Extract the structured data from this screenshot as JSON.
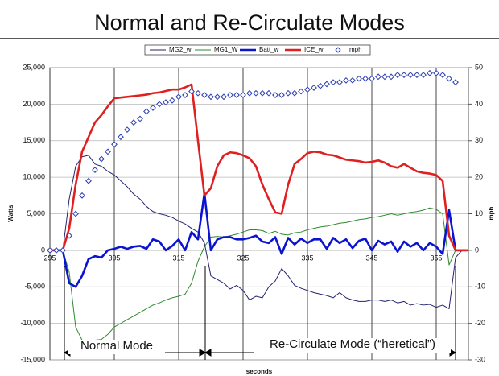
{
  "chart_data": {
    "type": "line",
    "title": "Normal and Re-Circulate Modes",
    "xlabel": "seconds",
    "ylabel": "Watts",
    "y2label": "mph",
    "annotations": [
      "Normal Mode",
      "Re-Circulate Mode (“heretical”)"
    ],
    "x": [
      295,
      296,
      297,
      298,
      299,
      300,
      301,
      302,
      303,
      304,
      305,
      306,
      307,
      308,
      309,
      310,
      311,
      312,
      313,
      314,
      315,
      316,
      317,
      318,
      319,
      320,
      321,
      322,
      323,
      324,
      325,
      326,
      327,
      328,
      329,
      330,
      331,
      332,
      333,
      334,
      335,
      336,
      337,
      338,
      339,
      340,
      341,
      342,
      343,
      344,
      345,
      346,
      347,
      348,
      349,
      350,
      351,
      352,
      353,
      354,
      355,
      356,
      357,
      358,
      359,
      360
    ],
    "xlim": [
      295,
      360
    ],
    "xticks": [
      295,
      305,
      315,
      325,
      335,
      345,
      355
    ],
    "ylim": [
      -15000,
      25000
    ],
    "yticks": [
      {
        "value": -15000,
        "label": "-15,000"
      },
      {
        "value": -10000,
        "label": "-10,000"
      },
      {
        "value": -5000,
        "label": "-5,000"
      },
      0,
      {
        "value": 5000,
        "label": "5,000"
      },
      {
        "value": 10000,
        "label": "10,000"
      },
      {
        "value": 15000,
        "label": "15,000"
      },
      {
        "value": 20000,
        "label": "20,000"
      },
      {
        "value": 25000,
        "label": "25,000"
      }
    ],
    "y2lim": [
      -30,
      50
    ],
    "y2ticks": [
      -30,
      -20,
      -10,
      0,
      10,
      20,
      30,
      40,
      50
    ],
    "grid": true,
    "legend": "top",
    "series": [
      {
        "name": "MG2_w",
        "color": "#23236e",
        "values": [
          0,
          0,
          0,
          7000,
          11500,
          12800,
          13000,
          11800,
          11500,
          10800,
          10300,
          9500,
          8700,
          7700,
          7000,
          6000,
          5300,
          5000,
          4800,
          4500,
          4000,
          3600,
          3000,
          2500,
          1000,
          -3500,
          -4000,
          -4500,
          -5300,
          -4800,
          -5500,
          -6800,
          -6300,
          -6500,
          -5000,
          -4200,
          -2500,
          -3500,
          -4800,
          -5200,
          -5500,
          -5800,
          -6000,
          -6200,
          -6500,
          -5800,
          -6500,
          -6800,
          -7000,
          -7000,
          -6800,
          -6800,
          -7000,
          -6800,
          -7200,
          -7000,
          -7500,
          -7300,
          -7500,
          -7400,
          -7800,
          -7500,
          -8000,
          -1000,
          0,
          0
        ]
      },
      {
        "name": "MG1_W",
        "color": "#2e8b2e",
        "values": [
          0,
          0,
          0,
          -3000,
          -10500,
          -12300,
          -12400,
          -12300,
          -12200,
          -11500,
          -10500,
          -10000,
          -9500,
          -9000,
          -8500,
          -8000,
          -7500,
          -7200,
          -6800,
          -6500,
          -6300,
          -6000,
          -4500,
          -1500,
          500,
          1800,
          1900,
          1800,
          2000,
          2200,
          2500,
          2800,
          2800,
          2700,
          2300,
          2600,
          2200,
          2100,
          2400,
          2500,
          2800,
          3000,
          3200,
          3300,
          3500,
          3700,
          3800,
          4000,
          4200,
          4300,
          4500,
          4600,
          4800,
          5000,
          4800,
          5000,
          5200,
          5300,
          5500,
          5800,
          5600,
          5000,
          -2000,
          0,
          0,
          0
        ]
      },
      {
        "name": "Batt_w",
        "color": "#0a14d0",
        "values": [
          0,
          0,
          0,
          -4500,
          -5000,
          -3500,
          -1200,
          -800,
          -1000,
          0,
          200,
          500,
          200,
          500,
          600,
          200,
          1500,
          1200,
          0,
          600,
          1500,
          0,
          2500,
          1500,
          7800,
          0,
          1500,
          1800,
          1800,
          1500,
          1500,
          1700,
          2000,
          1200,
          1000,
          1800,
          -500,
          1700,
          800,
          1600,
          1000,
          1500,
          1500,
          200,
          1700,
          1000,
          1500,
          300,
          1300,
          1600,
          0,
          1300,
          800,
          1200,
          -200,
          1200,
          500,
          1000,
          0,
          1000,
          500,
          -500,
          5500,
          0,
          0,
          0
        ]
      },
      {
        "name": "ICE_w",
        "color": "#e02020",
        "values": [
          0,
          0,
          0,
          3000,
          9000,
          13500,
          15500,
          17500,
          18500,
          19700,
          20800,
          20900,
          21000,
          21100,
          21200,
          21300,
          21500,
          21600,
          21800,
          22000,
          22000,
          22300,
          22700,
          15000,
          7500,
          8500,
          11500,
          13000,
          13400,
          13300,
          13000,
          12600,
          11500,
          9000,
          7000,
          5200,
          5000,
          9000,
          11800,
          12500,
          13300,
          13500,
          13400,
          13100,
          13000,
          12700,
          12400,
          12300,
          12200,
          12000,
          12100,
          12300,
          12000,
          11500,
          11300,
          11800,
          11300,
          10800,
          10600,
          10500,
          10300,
          9500,
          2000,
          0,
          0,
          0
        ]
      },
      {
        "name": "mph",
        "color": "#2a3cb0",
        "axis": "y2",
        "marker": "diamond",
        "values": [
          0,
          0,
          0,
          4,
          10,
          15,
          19,
          22,
          25,
          27,
          29,
          31,
          33,
          35,
          36,
          38,
          39,
          40,
          40.5,
          41,
          42,
          42.5,
          43.5,
          43,
          42.5,
          42,
          42,
          42,
          42.5,
          42.5,
          42.5,
          43,
          43,
          43,
          43,
          42.5,
          42.5,
          43,
          43,
          43.5,
          44,
          44.5,
          45,
          45.5,
          46,
          46,
          46.5,
          46.5,
          47,
          47,
          47,
          47.5,
          47.5,
          47.5,
          48,
          48,
          48,
          48,
          48,
          48.5,
          48.5,
          48,
          47,
          46,
          null,
          null
        ]
      }
    ]
  }
}
